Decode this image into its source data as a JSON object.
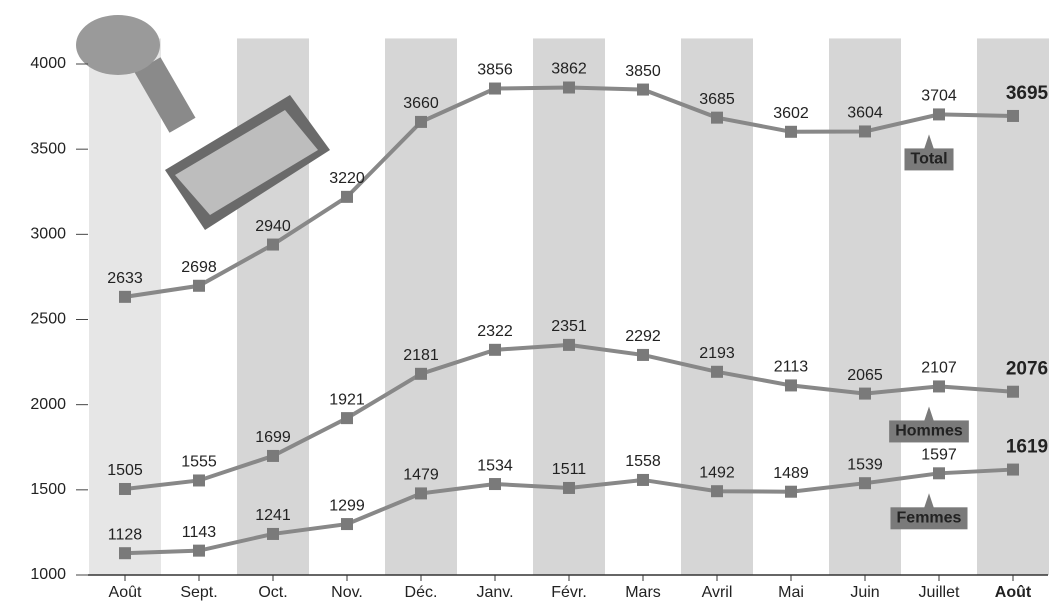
{
  "chart_data": {
    "type": "line",
    "categories": [
      "Août",
      "Sept.",
      "Oct.",
      "Nov.",
      "Déc.",
      "Janv.",
      "Févr.",
      "Mars",
      "Avril",
      "Mai",
      "Juin",
      "Juillet",
      "Août"
    ],
    "series": [
      {
        "name": "Total",
        "color": "#888888",
        "values": [
          2633,
          2698,
          2940,
          3220,
          3660,
          3856,
          3862,
          3850,
          3685,
          3602,
          3604,
          3704,
          3695
        ]
      },
      {
        "name": "Hommes",
        "color": "#888888",
        "values": [
          1505,
          1555,
          1699,
          1921,
          2181,
          2322,
          2351,
          2292,
          2193,
          2113,
          2065,
          2107,
          2076
        ]
      },
      {
        "name": "Femmes",
        "color": "#888888",
        "values": [
          1128,
          1143,
          1241,
          1299,
          1479,
          1534,
          1511,
          1558,
          1492,
          1489,
          1539,
          1597,
          1619
        ]
      }
    ],
    "ylim": [
      1000,
      4150
    ],
    "yticks": [
      1000,
      1500,
      2000,
      2500,
      3000,
      3500,
      4000
    ]
  }
}
